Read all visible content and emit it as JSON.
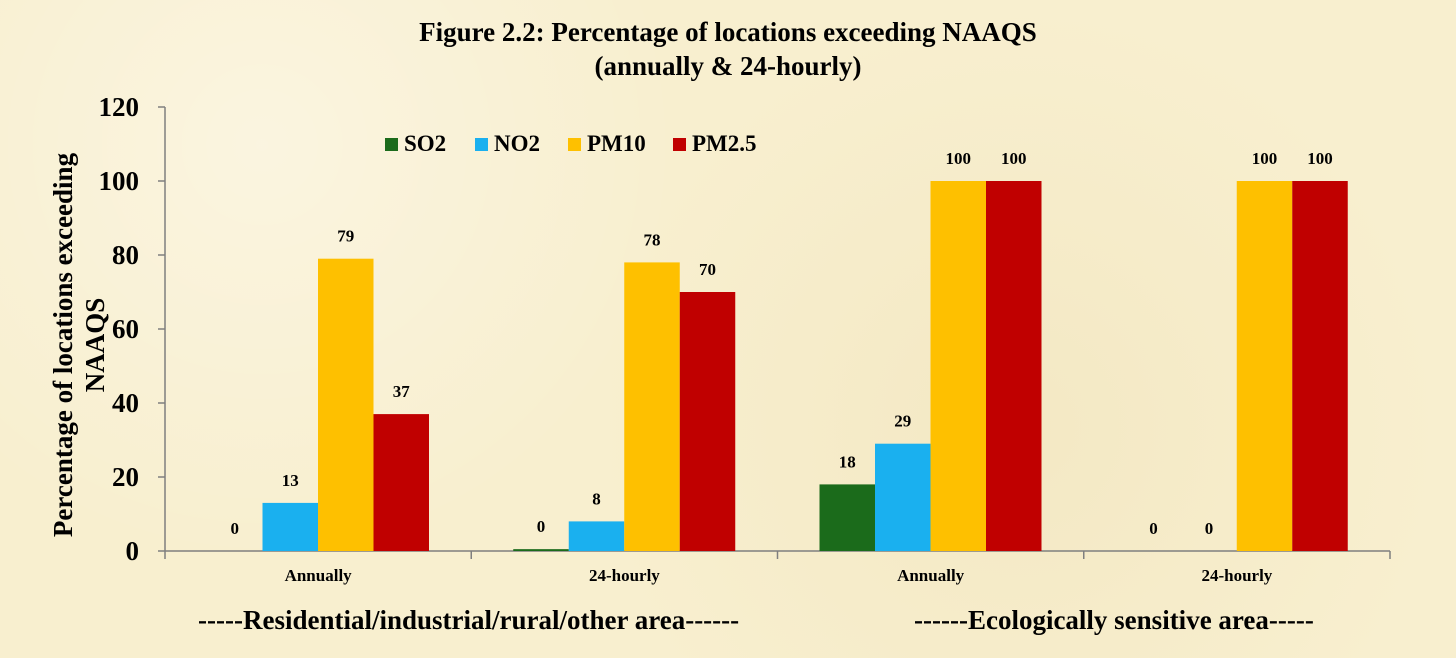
{
  "title_line1": "Figure 2.2: Percentage of locations exceeding NAAQS",
  "title_line2": "(annually & 24-hourly)",
  "ylabel_line1": "Percentage of locations exceeding",
  "ylabel_line2": "NAAQS",
  "group_captions": [
    "-----Residential/industrial/rural/other area------",
    "------Ecologically sensitive area-----"
  ],
  "legend_position": "top-left inside plot",
  "chart_data": {
    "type": "bar",
    "title": "Figure 2.2: Percentage of locations exceeding NAAQS (annually & 24-hourly)",
    "ylabel": "Percentage of locations exceeding NAAQS",
    "ylim": [
      0,
      120
    ],
    "yticks": [
      0,
      20,
      40,
      60,
      80,
      100,
      120
    ],
    "grid": false,
    "categories": [
      "Annually",
      "24-hourly",
      "Annually",
      "24-hourly"
    ],
    "series": [
      {
        "name": "SO2",
        "color": "#1b6b1b",
        "values": [
          0,
          0.5,
          18,
          0
        ],
        "labels": [
          "0",
          "0",
          "18",
          "0"
        ]
      },
      {
        "name": "NO2",
        "color": "#1ab0ef",
        "values": [
          13,
          8,
          29,
          0
        ],
        "labels": [
          "13",
          "8",
          "29",
          "0"
        ]
      },
      {
        "name": "PM10",
        "color": "#fec000",
        "values": [
          79,
          78,
          100,
          100
        ],
        "labels": [
          "79",
          "78",
          "100",
          "100"
        ]
      },
      {
        "name": "PM2.5",
        "color": "#c00000",
        "values": [
          37,
          70,
          100,
          100
        ],
        "labels": [
          "37",
          "70",
          "100",
          "100"
        ]
      }
    ]
  }
}
